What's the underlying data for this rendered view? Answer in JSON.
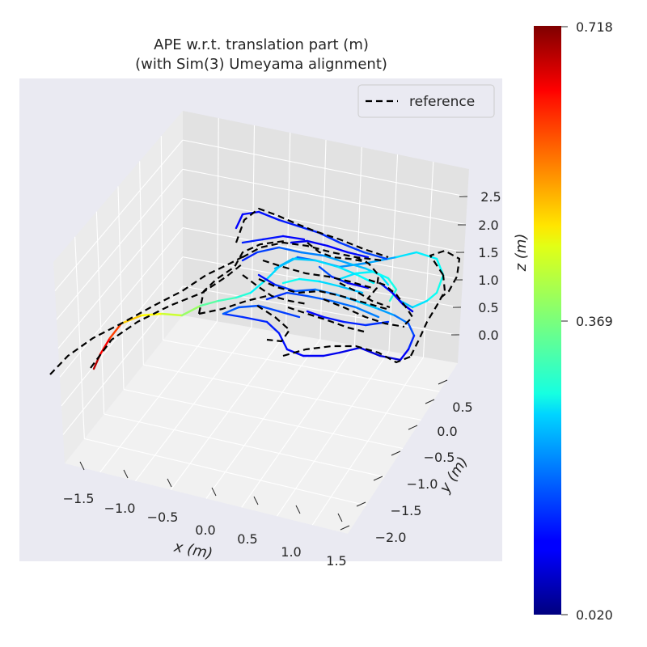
{
  "chart_data": {
    "type": "line",
    "title_lines": [
      "APE w.r.t. translation part (m)",
      "(with Sim(3) Umeyama alignment)"
    ],
    "xlabel": "x (m)",
    "ylabel": "y (m)",
    "zlabel": "z (m)",
    "x_ticks": [
      "−1.5",
      "−1.0",
      "−0.5",
      "0.0",
      "0.5",
      "1.0",
      "1.5"
    ],
    "y_ticks": [
      "−2.0",
      "−1.5",
      "−1.0",
      "−0.5",
      "0.0",
      "0.5"
    ],
    "z_ticks": [
      "0.0",
      "0.5",
      "1.0",
      "1.5",
      "2.0",
      "2.5"
    ],
    "xlim": [
      -1.8,
      1.8
    ],
    "ylim": [
      -2.3,
      0.9
    ],
    "zlim": [
      -0.2,
      2.9
    ],
    "grid": true,
    "legend": {
      "position": "top-right",
      "entries": [
        "reference"
      ]
    },
    "colorbar": {
      "colormap": "jet",
      "min_label": "0.020",
      "mid_label": "0.369",
      "max_label": "0.718",
      "min": 0.02,
      "max": 0.718
    },
    "series": [
      {
        "name": "reference",
        "style": "dashed",
        "color": "#000000"
      },
      {
        "style": "solid",
        "colored_by": "APE"
      }
    ]
  },
  "colors": {
    "axes_background": "#eaeaf2",
    "pane_back": "#e2e2e2",
    "pane_side": "#ebebeb",
    "pane_floor": "#f1f1f1",
    "grid": "#ffffff",
    "text": "#262626",
    "reference": "#000000"
  }
}
